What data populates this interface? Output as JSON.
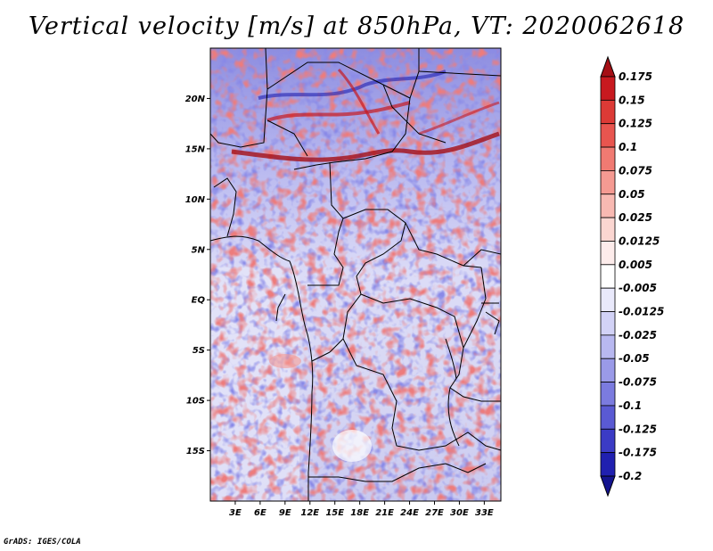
{
  "title": "Vertical velocity [m/s] at 850hPa, VT: 2020062618",
  "footer": "GrADS: IGES/COLA",
  "map": {
    "region": "Central Africa",
    "lon_range": [
      0,
      35
    ],
    "lat_range": [
      -20,
      25
    ],
    "lon_ticks": [
      "3E",
      "6E",
      "9E",
      "12E",
      "15E",
      "18E",
      "21E",
      "24E",
      "27E",
      "30E",
      "33E"
    ],
    "lat_ticks": [
      "20N",
      "15N",
      "10N",
      "5N",
      "EQ",
      "5S",
      "10S",
      "15S"
    ]
  },
  "colorbar": {
    "labels": [
      "0.175",
      "0.15",
      "0.125",
      "0.1",
      "0.075",
      "0.05",
      "0.025",
      "0.0125",
      "0.005",
      "-0.005",
      "-0.0125",
      "-0.025",
      "-0.05",
      "-0.075",
      "-0.1",
      "-0.125",
      "-0.175",
      "-0.2"
    ],
    "colors": [
      "#a50f15",
      "#c8191f",
      "#dc3a36",
      "#e8554f",
      "#f07a72",
      "#f59a92",
      "#f8b9b2",
      "#fbd6d1",
      "#fdeceb",
      "#ffffff",
      "#e9e9fb",
      "#d2d2f6",
      "#b8b8f0",
      "#9a9ae8",
      "#7b7bdf",
      "#5a5ad3",
      "#3b3bc5",
      "#2020b0",
      "#14148f"
    ]
  }
}
